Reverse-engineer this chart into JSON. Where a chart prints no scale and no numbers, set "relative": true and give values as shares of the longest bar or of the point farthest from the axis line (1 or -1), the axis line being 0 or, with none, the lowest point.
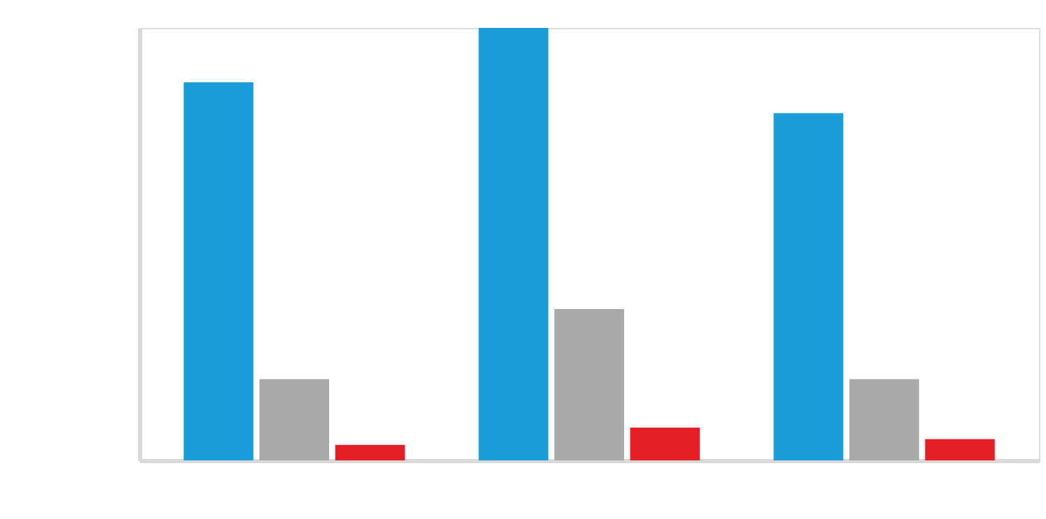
{
  "chart_data": {
    "type": "bar",
    "relative": true,
    "categories": [
      null,
      null,
      null
    ],
    "series": [
      {
        "color": "#1a9dd9",
        "values": [
          0.874,
          1,
          0.803
        ]
      },
      {
        "color": "#aaaaaa",
        "values": [
          0.188,
          0.35,
          0.188
        ]
      },
      {
        "color": "#e31e24",
        "values": [
          0.036,
          0.076,
          0.049
        ]
      }
    ]
  }
}
